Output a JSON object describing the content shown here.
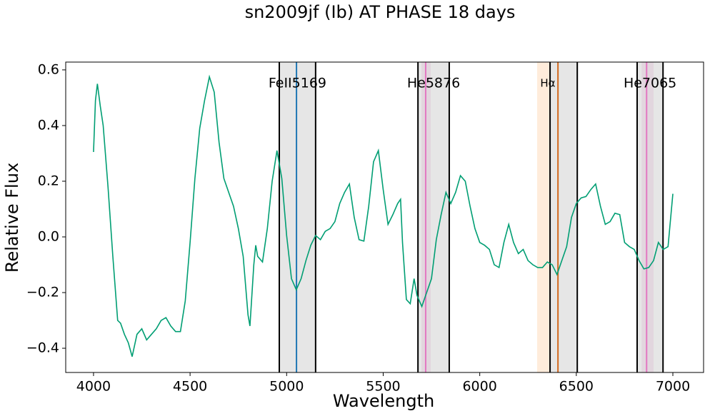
{
  "chart_data": {
    "type": "line",
    "title": "sn2009jf (Ib) AT PHASE 18 days",
    "x_label": "Wavelength",
    "y_label": "Relative Flux",
    "xlim": [
      3856,
      7159
    ],
    "ylim": [
      -0.487,
      0.628
    ],
    "xticks": [
      4000,
      4500,
      5000,
      5500,
      6000,
      6500,
      7000
    ],
    "yticks": [
      {
        "value": -0.4,
        "label": "−0.4"
      },
      {
        "value": -0.2,
        "label": "−0.2"
      },
      {
        "value": 0,
        "label": "0.0"
      },
      0.2,
      0.4,
      0.6
    ],
    "regions": [
      {
        "label": "FeII5169",
        "bounds": [
          4962,
          5150
        ],
        "line": 5051,
        "line_color": "#1f77b4"
      },
      {
        "label": "He5876",
        "bounds": [
          5680,
          5842
        ],
        "line": 5720,
        "line_color": "#e377c2",
        "band": [
          5698,
          5746
        ],
        "band_color": "#e377c2"
      },
      {
        "label": "Hα",
        "bounds": [
          6364,
          6505
        ],
        "line": 6405,
        "line_color": "#d2691e",
        "band": [
          6297,
          6364
        ],
        "band_color": "#ff7f0e"
      },
      {
        "label": "He7065",
        "bounds": [
          6815,
          6949
        ],
        "line": 6864,
        "line_color": "#e377c2",
        "band": [
          6838,
          6900
        ],
        "band_color": "#e377c2"
      }
    ],
    "series": [
      {
        "color": "#009e73",
        "x": [
          4000,
          4010,
          4020,
          4035,
          4050,
          4075,
          4100,
          4125,
          4140,
          4160,
          4180,
          4200,
          4225,
          4250,
          4275,
          4300,
          4325,
          4350,
          4375,
          4400,
          4425,
          4450,
          4475,
          4500,
          4525,
          4550,
          4575,
          4600,
          4625,
          4650,
          4675,
          4700,
          4725,
          4750,
          4775,
          4800,
          4810,
          4830,
          4840,
          4850,
          4875,
          4900,
          4925,
          4950,
          4975,
          5000,
          5025,
          5050,
          5075,
          5100,
          5125,
          5150,
          5175,
          5200,
          5225,
          5250,
          5275,
          5300,
          5325,
          5350,
          5375,
          5400,
          5425,
          5450,
          5475,
          5500,
          5525,
          5550,
          5575,
          5590,
          5600,
          5620,
          5640,
          5660,
          5675,
          5700,
          5725,
          5750,
          5775,
          5800,
          5825,
          5850,
          5875,
          5900,
          5925,
          5950,
          5975,
          6000,
          6025,
          6050,
          6075,
          6100,
          6125,
          6150,
          6175,
          6200,
          6225,
          6250,
          6275,
          6300,
          6325,
          6350,
          6375,
          6400,
          6425,
          6450,
          6475,
          6500,
          6525,
          6550,
          6575,
          6600,
          6625,
          6650,
          6675,
          6700,
          6725,
          6750,
          6775,
          6800,
          6825,
          6850,
          6875,
          6900,
          6925,
          6950,
          6975,
          7000
        ],
        "values": [
          0.305,
          0.49,
          0.55,
          0.47,
          0.4,
          0.18,
          -0.07,
          -0.3,
          -0.31,
          -0.35,
          -0.38,
          -0.43,
          -0.35,
          -0.33,
          -0.37,
          -0.35,
          -0.33,
          -0.3,
          -0.29,
          -0.32,
          -0.34,
          -0.34,
          -0.23,
          -0.02,
          0.21,
          0.39,
          0.49,
          0.575,
          0.52,
          0.34,
          0.21,
          0.16,
          0.11,
          0.03,
          -0.07,
          -0.28,
          -0.32,
          -0.1,
          -0.03,
          -0.07,
          -0.09,
          0.03,
          0.2,
          0.31,
          0.21,
          0.005,
          -0.15,
          -0.19,
          -0.15,
          -0.085,
          -0.03,
          0.005,
          -0.01,
          0.02,
          0.03,
          0.055,
          0.12,
          0.16,
          0.19,
          0.07,
          -0.01,
          -0.015,
          0.11,
          0.27,
          0.31,
          0.17,
          0.045,
          0.08,
          0.12,
          0.135,
          -0.02,
          -0.225,
          -0.24,
          -0.15,
          -0.21,
          -0.25,
          -0.2,
          -0.15,
          -0.01,
          0.08,
          0.16,
          0.12,
          0.16,
          0.22,
          0.2,
          0.11,
          0.03,
          -0.02,
          -0.03,
          -0.045,
          -0.1,
          -0.11,
          -0.02,
          0.045,
          -0.02,
          -0.06,
          -0.045,
          -0.085,
          -0.1,
          -0.11,
          -0.11,
          -0.09,
          -0.1,
          -0.135,
          -0.085,
          -0.035,
          0.07,
          0.12,
          0.14,
          0.145,
          0.17,
          0.19,
          0.11,
          0.045,
          0.055,
          0.085,
          0.08,
          -0.02,
          -0.035,
          -0.045,
          -0.085,
          -0.115,
          -0.11,
          -0.085,
          -0.02,
          -0.045,
          -0.035,
          0.155
        ]
      }
    ]
  }
}
